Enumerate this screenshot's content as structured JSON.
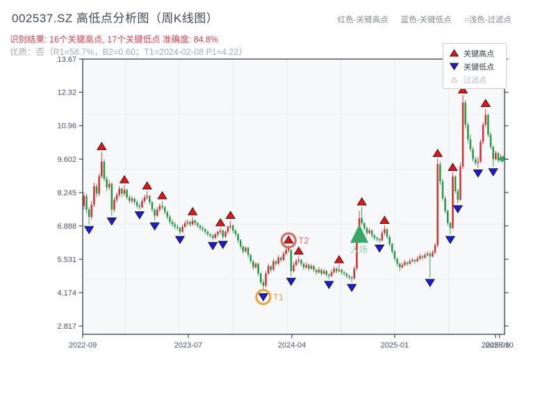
{
  "header": {
    "title": "002537.SZ 高低点分析图（周K线图）",
    "result_line": "识别结果: 16个关键高点, 17个关键低点  准确度: 84.8%",
    "quality_line": "优质：否（R1=58.7%，B2=0.60；T1=2024-02-08 P1=4.22）",
    "key_high": "红色-关键高点",
    "key_low": "蓝色-关键低点",
    "key_filtered": "○浅色-过滤点"
  },
  "legend": {
    "high": "关键高点",
    "low": "关键低点",
    "filtered": "过滤点"
  },
  "colors": {
    "up_candle": "#d92b2b",
    "down_candle": "#1e9a41",
    "high_marker": "#e81212",
    "low_marker": "#1a1ad9",
    "entry_green": "#35a866",
    "entry_text": "#8eccaa",
    "t1_orange": "#f0a43c",
    "t2_salmon": "#e06a62",
    "plot_bg": "#f7f8fa",
    "spine": "#2e3d4f",
    "grid": "#e9ecef",
    "tick_text": "#44546a"
  },
  "chart_data": {
    "type": "candlestick",
    "title": "002537.SZ 高低点分析图（周K线图）",
    "xlabel": "",
    "ylabel": "",
    "ylim": [
      2.48,
      13.67
    ],
    "grid": true,
    "legend_position": "upper-right",
    "yticks": [
      "2.817",
      "4.174",
      "5.531",
      "6.888",
      "8.245",
      "9.602",
      "10.96",
      "12.32",
      "13.67"
    ],
    "xticks": [
      {
        "label": "2022-09",
        "i": -0.5
      },
      {
        "label": "2023-07",
        "i": 41.3
      },
      {
        "label": "2024-04",
        "i": 82.3
      },
      {
        "label": "2025-01",
        "i": 123.0
      },
      {
        "label": "2025-09",
        "i": 162.9
      },
      {
        "label": "2025-10",
        "i": 164.5
      }
    ],
    "candles": [
      [
        7.7,
        8.25,
        7.55,
        8.1
      ],
      [
        8.1,
        8.2,
        7.4,
        7.55
      ],
      [
        7.55,
        7.65,
        6.95,
        7.25
      ],
      [
        7.25,
        7.9,
        7.15,
        7.75
      ],
      [
        7.75,
        8.65,
        7.65,
        8.5
      ],
      [
        8.5,
        8.6,
        8.05,
        8.2
      ],
      [
        8.2,
        9.0,
        8.1,
        8.9
      ],
      [
        8.9,
        9.9,
        8.8,
        9.5
      ],
      [
        9.5,
        9.6,
        8.7,
        8.8
      ],
      [
        8.8,
        8.9,
        8.3,
        8.45
      ],
      [
        8.45,
        8.75,
        8.35,
        8.6
      ],
      [
        8.6,
        8.65,
        7.3,
        7.55
      ],
      [
        7.55,
        8.05,
        7.45,
        7.95
      ],
      [
        7.95,
        8.25,
        7.85,
        8.15
      ],
      [
        8.15,
        8.5,
        8.05,
        8.4
      ],
      [
        8.4,
        8.45,
        8.05,
        8.2
      ],
      [
        8.2,
        8.55,
        8.1,
        8.35
      ],
      [
        8.35,
        8.4,
        7.95,
        8.05
      ],
      [
        8.05,
        8.15,
        7.8,
        7.9
      ],
      [
        7.9,
        8.1,
        7.8,
        8.0
      ],
      [
        8.0,
        8.05,
        7.75,
        7.85
      ],
      [
        7.85,
        7.95,
        7.6,
        7.7
      ],
      [
        7.7,
        7.8,
        7.55,
        7.65
      ],
      [
        7.65,
        8.0,
        7.6,
        7.9
      ],
      [
        7.9,
        8.15,
        7.8,
        8.05
      ],
      [
        8.05,
        8.3,
        7.95,
        8.1
      ],
      [
        8.1,
        8.15,
        7.75,
        7.85
      ],
      [
        7.85,
        7.9,
        7.45,
        7.55
      ],
      [
        7.55,
        7.6,
        7.1,
        7.3
      ],
      [
        7.3,
        7.65,
        7.25,
        7.55
      ],
      [
        7.55,
        7.8,
        7.45,
        7.7
      ],
      [
        7.7,
        7.9,
        7.55,
        7.65
      ],
      [
        7.65,
        7.7,
        7.35,
        7.45
      ],
      [
        7.45,
        7.5,
        7.15,
        7.25
      ],
      [
        7.25,
        7.35,
        6.95,
        7.05
      ],
      [
        7.05,
        7.15,
        6.85,
        6.95
      ],
      [
        6.95,
        7.05,
        6.75,
        6.85
      ],
      [
        6.85,
        6.95,
        6.7,
        6.8
      ],
      [
        6.8,
        6.85,
        6.55,
        6.65
      ],
      [
        6.65,
        6.95,
        6.6,
        6.85
      ],
      [
        6.85,
        7.1,
        6.8,
        7.0
      ],
      [
        7.0,
        7.15,
        6.9,
        7.05
      ],
      [
        7.05,
        7.1,
        6.85,
        6.95
      ],
      [
        6.95,
        7.25,
        6.9,
        7.1
      ],
      [
        7.1,
        7.15,
        6.9,
        7.0
      ],
      [
        7.0,
        7.05,
        6.8,
        6.9
      ],
      [
        6.9,
        6.95,
        6.7,
        6.8
      ],
      [
        6.8,
        6.9,
        6.65,
        6.75
      ],
      [
        6.75,
        6.8,
        6.55,
        6.65
      ],
      [
        6.65,
        6.7,
        6.45,
        6.55
      ],
      [
        6.55,
        6.6,
        6.4,
        6.5
      ],
      [
        6.5,
        6.55,
        6.3,
        6.4
      ],
      [
        6.4,
        6.6,
        6.35,
        6.55
      ],
      [
        6.55,
        6.7,
        6.45,
        6.65
      ],
      [
        6.65,
        6.8,
        6.55,
        6.7
      ],
      [
        6.7,
        6.75,
        6.35,
        6.45
      ],
      [
        6.45,
        6.7,
        6.4,
        6.65
      ],
      [
        6.65,
        6.9,
        6.55,
        6.85
      ],
      [
        6.85,
        7.1,
        6.75,
        6.9
      ],
      [
        6.9,
        6.95,
        6.6,
        6.7
      ],
      [
        6.7,
        6.75,
        6.45,
        6.55
      ],
      [
        6.55,
        6.6,
        6.2,
        6.3
      ],
      [
        6.3,
        6.35,
        5.95,
        6.05
      ],
      [
        6.05,
        6.1,
        5.75,
        5.85
      ],
      [
        5.85,
        6.05,
        5.8,
        6.0
      ],
      [
        6.0,
        6.05,
        5.6,
        5.7
      ],
      [
        5.7,
        5.75,
        5.35,
        5.45
      ],
      [
        5.45,
        5.5,
        5.1,
        5.2
      ],
      [
        5.2,
        5.4,
        5.15,
        5.35
      ],
      [
        5.35,
        5.4,
        4.85,
        4.95
      ],
      [
        4.95,
        5.0,
        4.5,
        4.6
      ],
      [
        4.6,
        4.7,
        4.22,
        4.45
      ],
      [
        4.45,
        5.05,
        4.4,
        4.95
      ],
      [
        4.95,
        5.35,
        4.9,
        5.25
      ],
      [
        5.25,
        5.3,
        5.0,
        5.1
      ],
      [
        5.1,
        5.55,
        5.05,
        5.45
      ],
      [
        5.45,
        5.5,
        5.25,
        5.35
      ],
      [
        5.35,
        5.7,
        5.3,
        5.6
      ],
      [
        5.6,
        5.65,
        5.4,
        5.5
      ],
      [
        5.5,
        5.85,
        5.45,
        5.75
      ],
      [
        5.75,
        6.0,
        5.7,
        5.9
      ],
      [
        5.9,
        6.1,
        5.8,
        6.0
      ],
      [
        5.9,
        5.95,
        4.85,
        5.05
      ],
      [
        5.05,
        5.4,
        5.0,
        5.3
      ],
      [
        5.3,
        5.55,
        5.25,
        5.45
      ],
      [
        5.45,
        5.65,
        5.35,
        5.5
      ],
      [
        5.5,
        5.55,
        5.25,
        5.35
      ],
      [
        5.35,
        5.4,
        5.1,
        5.2
      ],
      [
        5.2,
        5.4,
        5.15,
        5.3
      ],
      [
        5.3,
        5.35,
        5.05,
        5.15
      ],
      [
        5.15,
        5.35,
        5.1,
        5.25
      ],
      [
        5.25,
        5.3,
        5.0,
        5.1
      ],
      [
        5.1,
        5.15,
        4.9,
        5.0
      ],
      [
        5.0,
        5.2,
        4.95,
        5.1
      ],
      [
        5.1,
        5.15,
        4.85,
        4.95
      ],
      [
        4.95,
        5.15,
        4.9,
        5.05
      ],
      [
        5.05,
        5.1,
        4.8,
        4.9
      ],
      [
        4.9,
        4.95,
        4.72,
        4.85
      ],
      [
        4.85,
        5.1,
        4.8,
        5.0
      ],
      [
        5.0,
        5.25,
        4.95,
        5.15
      ],
      [
        5.15,
        5.2,
        4.95,
        5.05
      ],
      [
        5.05,
        5.3,
        5.0,
        5.1
      ],
      [
        5.1,
        5.15,
        4.9,
        5.0
      ],
      [
        5.0,
        5.05,
        4.85,
        4.95
      ],
      [
        4.95,
        5.0,
        4.75,
        4.85
      ],
      [
        4.85,
        4.9,
        4.7,
        4.8
      ],
      [
        4.8,
        4.85,
        4.6,
        4.75
      ],
      [
        4.75,
        5.25,
        4.7,
        5.15
      ],
      [
        5.15,
        6.5,
        5.1,
        6.3
      ],
      [
        6.3,
        7.5,
        6.2,
        7.2
      ],
      [
        7.2,
        7.65,
        6.9,
        7.0
      ],
      [
        7.0,
        7.05,
        6.7,
        6.8
      ],
      [
        6.8,
        6.85,
        6.5,
        6.6
      ],
      [
        6.6,
        6.8,
        6.55,
        6.7
      ],
      [
        6.7,
        6.75,
        6.4,
        6.5
      ],
      [
        6.5,
        6.55,
        6.3,
        6.4
      ],
      [
        6.4,
        6.45,
        6.25,
        6.35
      ],
      [
        6.35,
        6.4,
        6.2,
        6.3
      ],
      [
        6.3,
        6.7,
        6.25,
        6.6
      ],
      [
        6.6,
        6.9,
        6.5,
        6.75
      ],
      [
        6.75,
        6.8,
        6.35,
        6.45
      ],
      [
        6.45,
        6.5,
        6.05,
        6.15
      ],
      [
        6.15,
        6.2,
        5.75,
        5.85
      ],
      [
        5.85,
        5.9,
        5.45,
        5.55
      ],
      [
        5.55,
        5.6,
        5.25,
        5.35
      ],
      [
        5.35,
        5.4,
        5.05,
        5.2
      ],
      [
        5.2,
        5.4,
        5.15,
        5.3
      ],
      [
        5.3,
        5.5,
        5.25,
        5.4
      ],
      [
        5.4,
        5.45,
        5.25,
        5.35
      ],
      [
        5.35,
        5.55,
        5.3,
        5.45
      ],
      [
        5.45,
        5.6,
        5.4,
        5.5
      ],
      [
        5.5,
        5.55,
        5.35,
        5.45
      ],
      [
        5.45,
        5.65,
        5.4,
        5.55
      ],
      [
        5.55,
        5.75,
        5.5,
        5.65
      ],
      [
        5.65,
        5.7,
        5.5,
        5.6
      ],
      [
        5.6,
        5.8,
        5.55,
        5.7
      ],
      [
        5.7,
        5.85,
        5.65,
        5.75
      ],
      [
        5.75,
        5.85,
        4.8,
        5.65
      ],
      [
        5.65,
        5.9,
        5.6,
        5.8
      ],
      [
        5.8,
        6.2,
        5.75,
        6.1
      ],
      [
        6.1,
        9.62,
        6.0,
        9.4
      ],
      [
        9.4,
        9.5,
        8.55,
        8.7
      ],
      [
        8.7,
        8.8,
        7.9,
        8.0
      ],
      [
        8.0,
        8.1,
        7.4,
        7.5
      ],
      [
        7.5,
        7.55,
        6.9,
        7.0
      ],
      [
        7.0,
        7.05,
        6.55,
        6.8
      ],
      [
        6.8,
        9.05,
        6.75,
        8.9
      ],
      [
        8.9,
        8.95,
        8.2,
        8.3
      ],
      [
        8.3,
        8.4,
        7.8,
        7.95
      ],
      [
        7.95,
        9.45,
        7.9,
        9.3
      ],
      [
        9.3,
        12.2,
        9.2,
        11.9
      ],
      [
        11.9,
        12.0,
        10.85,
        11.0
      ],
      [
        11.0,
        11.1,
        10.25,
        10.4
      ],
      [
        10.4,
        10.6,
        9.9,
        10.0
      ],
      [
        10.0,
        10.1,
        9.5,
        9.6
      ],
      [
        9.6,
        9.7,
        9.35,
        9.45
      ],
      [
        9.45,
        9.7,
        9.25,
        9.5
      ],
      [
        9.5,
        10.4,
        9.45,
        10.3
      ],
      [
        10.3,
        11.1,
        10.2,
        11.0
      ],
      [
        11.0,
        11.65,
        10.9,
        11.4
      ],
      [
        11.4,
        11.45,
        10.5,
        10.6
      ],
      [
        10.6,
        10.7,
        10.0,
        10.1
      ],
      [
        10.1,
        10.15,
        9.3,
        9.6
      ],
      [
        9.6,
        9.95,
        9.55,
        9.85
      ],
      [
        9.85,
        9.9,
        9.45,
        9.55
      ],
      [
        9.55,
        9.8,
        9.5,
        9.7
      ],
      [
        9.7,
        9.75,
        9.5,
        9.6
      ]
    ],
    "key_highs": [
      7,
      16,
      25,
      31,
      43,
      54,
      58,
      81,
      85,
      101,
      110,
      119,
      140,
      146,
      150,
      159
    ],
    "key_lows": [
      2,
      11,
      22,
      28,
      38,
      51,
      55,
      71,
      82,
      97,
      106,
      117,
      137,
      145,
      148,
      156,
      162
    ],
    "annotations": {
      "t1": {
        "label": "T1",
        "index": 71,
        "price": 4.22
      },
      "t2": {
        "label": "T2",
        "index": 81,
        "price": 6.1
      },
      "entry": {
        "label": "入场",
        "index": 109,
        "price": 6.4
      },
      "last_price": {
        "price": 9.6
      }
    }
  }
}
